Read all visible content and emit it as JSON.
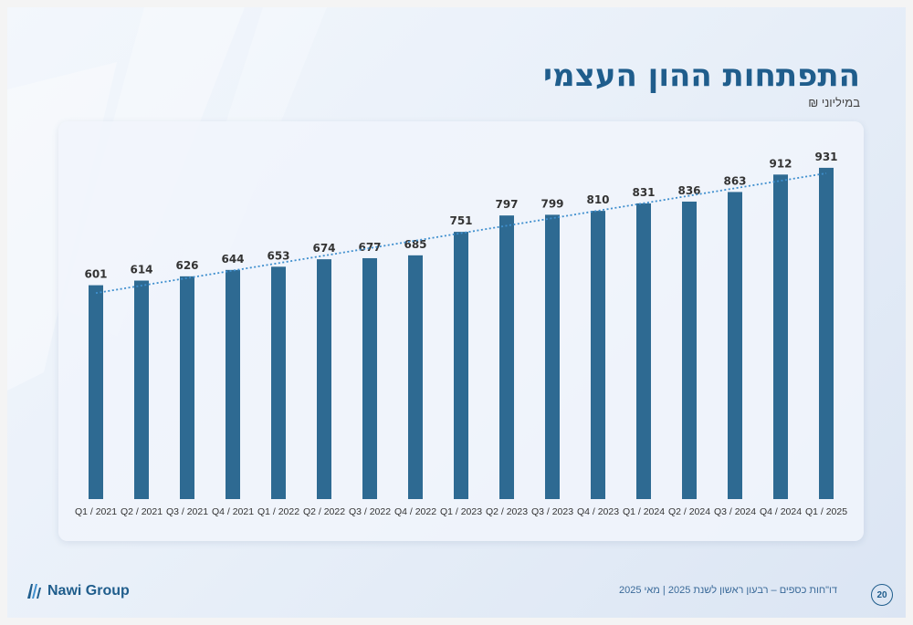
{
  "header": {
    "title": "התפתחות ההון העצמי",
    "subtitle": "במיליוני ₪"
  },
  "footer": {
    "brand": "Nawi Group",
    "report_text": "דו\"חות כספים – רבעון ראשון לשנת 2025 | מאי 2025",
    "page_number": "20"
  },
  "icons": {
    "logo": "nawi-logo-icon"
  },
  "colors": {
    "bar": "#2e6a92",
    "trendline": "#3f8fce",
    "title": "#1f5d8c"
  },
  "chart_data": {
    "type": "bar",
    "title": "התפתחות ההון העצמי",
    "subtitle": "במיליוני ₪",
    "categories": [
      "Q1 / 2021",
      "Q2 / 2021",
      "Q3 / 2021",
      "Q4 / 2021",
      "Q1 / 2022",
      "Q2 / 2022",
      "Q3 / 2022",
      "Q4 / 2022",
      "Q1 / 2023",
      "Q2 / 2023",
      "Q3 / 2023",
      "Q4 / 2023",
      "Q1 / 2024",
      "Q2 / 2024",
      "Q3 / 2024",
      "Q4 / 2024",
      "Q1 / 2025"
    ],
    "values": [
      601,
      614,
      626,
      644,
      653,
      674,
      677,
      685,
      751,
      797,
      799,
      810,
      831,
      836,
      863,
      912,
      931
    ],
    "ylim": [
      0,
      1000
    ],
    "trendline": "linear, dotted",
    "grid": false,
    "legend": "none",
    "data_labels": true,
    "yaxis_visible": false
  }
}
